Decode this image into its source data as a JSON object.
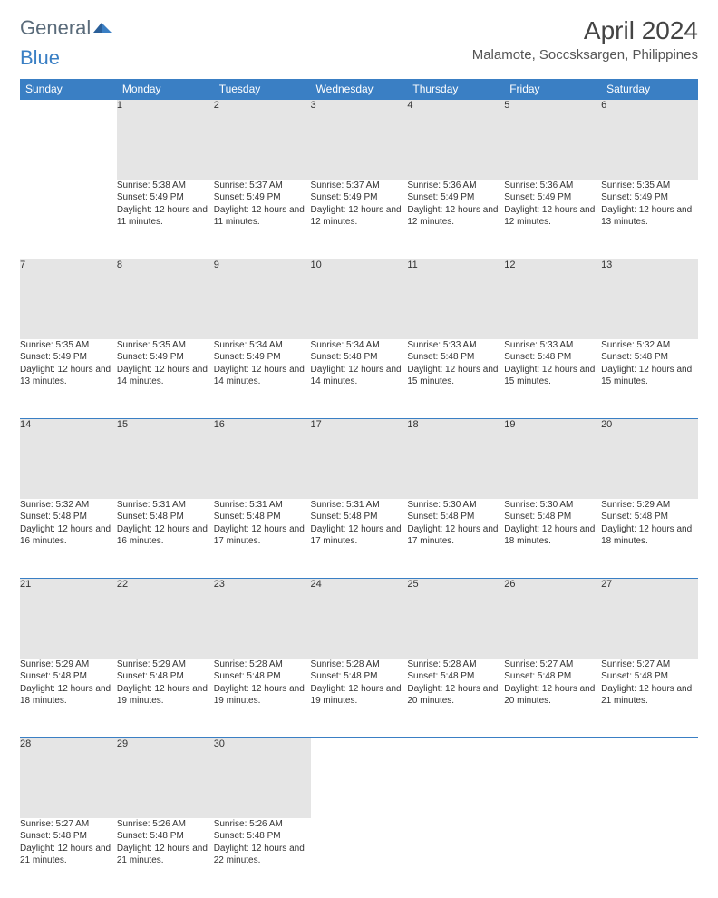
{
  "logo": {
    "textGeneral": "General",
    "textBlue": "Blue"
  },
  "colors": {
    "headerBg": "#3a7fc4",
    "headerText": "#ffffff",
    "dayNumBg": "#e5e5e5",
    "rowBorder": "#3a7fc4",
    "bodyText": "#333333",
    "logoGray": "#5a6b7a",
    "logoBlue": "#3a7fc4"
  },
  "title": "April 2024",
  "location": "Malamote, Soccsksargen, Philippines",
  "weekdays": [
    "Sunday",
    "Monday",
    "Tuesday",
    "Wednesday",
    "Thursday",
    "Friday",
    "Saturday"
  ],
  "leadingBlanks": 1,
  "days": [
    {
      "n": 1,
      "sunrise": "5:38 AM",
      "sunset": "5:49 PM",
      "daylight": "12 hours and 11 minutes."
    },
    {
      "n": 2,
      "sunrise": "5:37 AM",
      "sunset": "5:49 PM",
      "daylight": "12 hours and 11 minutes."
    },
    {
      "n": 3,
      "sunrise": "5:37 AM",
      "sunset": "5:49 PM",
      "daylight": "12 hours and 12 minutes."
    },
    {
      "n": 4,
      "sunrise": "5:36 AM",
      "sunset": "5:49 PM",
      "daylight": "12 hours and 12 minutes."
    },
    {
      "n": 5,
      "sunrise": "5:36 AM",
      "sunset": "5:49 PM",
      "daylight": "12 hours and 12 minutes."
    },
    {
      "n": 6,
      "sunrise": "5:35 AM",
      "sunset": "5:49 PM",
      "daylight": "12 hours and 13 minutes."
    },
    {
      "n": 7,
      "sunrise": "5:35 AM",
      "sunset": "5:49 PM",
      "daylight": "12 hours and 13 minutes."
    },
    {
      "n": 8,
      "sunrise": "5:35 AM",
      "sunset": "5:49 PM",
      "daylight": "12 hours and 14 minutes."
    },
    {
      "n": 9,
      "sunrise": "5:34 AM",
      "sunset": "5:49 PM",
      "daylight": "12 hours and 14 minutes."
    },
    {
      "n": 10,
      "sunrise": "5:34 AM",
      "sunset": "5:48 PM",
      "daylight": "12 hours and 14 minutes."
    },
    {
      "n": 11,
      "sunrise": "5:33 AM",
      "sunset": "5:48 PM",
      "daylight": "12 hours and 15 minutes."
    },
    {
      "n": 12,
      "sunrise": "5:33 AM",
      "sunset": "5:48 PM",
      "daylight": "12 hours and 15 minutes."
    },
    {
      "n": 13,
      "sunrise": "5:32 AM",
      "sunset": "5:48 PM",
      "daylight": "12 hours and 15 minutes."
    },
    {
      "n": 14,
      "sunrise": "5:32 AM",
      "sunset": "5:48 PM",
      "daylight": "12 hours and 16 minutes."
    },
    {
      "n": 15,
      "sunrise": "5:31 AM",
      "sunset": "5:48 PM",
      "daylight": "12 hours and 16 minutes."
    },
    {
      "n": 16,
      "sunrise": "5:31 AM",
      "sunset": "5:48 PM",
      "daylight": "12 hours and 17 minutes."
    },
    {
      "n": 17,
      "sunrise": "5:31 AM",
      "sunset": "5:48 PM",
      "daylight": "12 hours and 17 minutes."
    },
    {
      "n": 18,
      "sunrise": "5:30 AM",
      "sunset": "5:48 PM",
      "daylight": "12 hours and 17 minutes."
    },
    {
      "n": 19,
      "sunrise": "5:30 AM",
      "sunset": "5:48 PM",
      "daylight": "12 hours and 18 minutes."
    },
    {
      "n": 20,
      "sunrise": "5:29 AM",
      "sunset": "5:48 PM",
      "daylight": "12 hours and 18 minutes."
    },
    {
      "n": 21,
      "sunrise": "5:29 AM",
      "sunset": "5:48 PM",
      "daylight": "12 hours and 18 minutes."
    },
    {
      "n": 22,
      "sunrise": "5:29 AM",
      "sunset": "5:48 PM",
      "daylight": "12 hours and 19 minutes."
    },
    {
      "n": 23,
      "sunrise": "5:28 AM",
      "sunset": "5:48 PM",
      "daylight": "12 hours and 19 minutes."
    },
    {
      "n": 24,
      "sunrise": "5:28 AM",
      "sunset": "5:48 PM",
      "daylight": "12 hours and 19 minutes."
    },
    {
      "n": 25,
      "sunrise": "5:28 AM",
      "sunset": "5:48 PM",
      "daylight": "12 hours and 20 minutes."
    },
    {
      "n": 26,
      "sunrise": "5:27 AM",
      "sunset": "5:48 PM",
      "daylight": "12 hours and 20 minutes."
    },
    {
      "n": 27,
      "sunrise": "5:27 AM",
      "sunset": "5:48 PM",
      "daylight": "12 hours and 21 minutes."
    },
    {
      "n": 28,
      "sunrise": "5:27 AM",
      "sunset": "5:48 PM",
      "daylight": "12 hours and 21 minutes."
    },
    {
      "n": 29,
      "sunrise": "5:26 AM",
      "sunset": "5:48 PM",
      "daylight": "12 hours and 21 minutes."
    },
    {
      "n": 30,
      "sunrise": "5:26 AM",
      "sunset": "5:48 PM",
      "daylight": "12 hours and 22 minutes."
    }
  ],
  "labels": {
    "sunrise": "Sunrise:",
    "sunset": "Sunset:",
    "daylight": "Daylight:"
  }
}
